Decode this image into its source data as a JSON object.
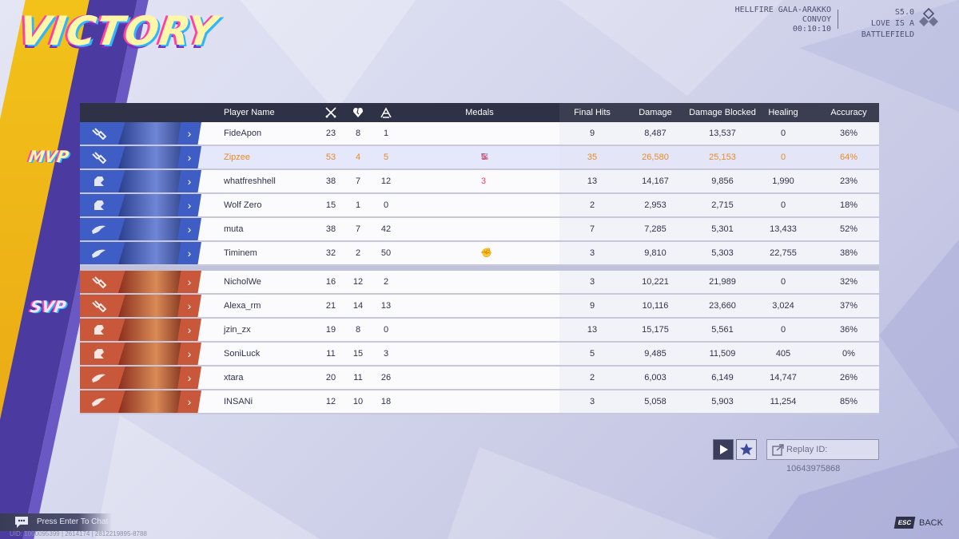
{
  "banner": {
    "title": "VICTORY"
  },
  "match": {
    "map": "HELLFIRE GALA-ARAKKO",
    "mode": "CONVOY",
    "duration": "00:10:10"
  },
  "season": {
    "number": "S5.0",
    "name": "LOVE IS A BATTLEFIELD"
  },
  "labels": {
    "mvp": "MVP",
    "svp": "SVP"
  },
  "table": {
    "headers": {
      "name": "Player Name",
      "medals": "Medals",
      "final_hits": "Final Hits",
      "damage": "Damage",
      "damage_blocked": "Damage Blocked",
      "healing": "Healing",
      "accuracy": "Accuracy"
    },
    "team_a": [
      {
        "name": "FideApon",
        "k": "23",
        "d": "8",
        "a": "1",
        "fh": "9",
        "dmg": "8,487",
        "blk": "13,537",
        "heal": "0",
        "acc": "36%",
        "role": "vanguard",
        "side": "blue"
      },
      {
        "name": "Zipzee",
        "k": "53",
        "d": "4",
        "a": "5",
        "fh": "35",
        "dmg": "26,580",
        "blk": "25,153",
        "heal": "0",
        "acc": "64%",
        "role": "vanguard",
        "side": "blue",
        "mvp": true
      },
      {
        "name": "whatfreshhell",
        "k": "38",
        "d": "7",
        "a": "12",
        "fh": "13",
        "dmg": "14,167",
        "blk": "9,856",
        "heal": "1,990",
        "acc": "23%",
        "role": "duelist",
        "side": "blue"
      },
      {
        "name": "Wolf Zero",
        "k": "15",
        "d": "1",
        "a": "0",
        "fh": "2",
        "dmg": "2,953",
        "blk": "2,715",
        "heal": "0",
        "acc": "18%",
        "role": "duelist",
        "side": "blue"
      },
      {
        "name": "muta",
        "k": "38",
        "d": "7",
        "a": "42",
        "fh": "7",
        "dmg": "7,285",
        "blk": "5,301",
        "heal": "13,433",
        "acc": "52%",
        "role": "strategist",
        "side": "blue"
      },
      {
        "name": "Timinem",
        "k": "32",
        "d": "2",
        "a": "50",
        "fh": "3",
        "dmg": "9,810",
        "blk": "5,303",
        "heal": "22,755",
        "acc": "38%",
        "role": "strategist",
        "side": "blue"
      }
    ],
    "team_b": [
      {
        "name": "NicholWe",
        "k": "16",
        "d": "12",
        "a": "2",
        "fh": "3",
        "dmg": "10,221",
        "blk": "21,989",
        "heal": "0",
        "acc": "32%",
        "role": "vanguard",
        "side": "red"
      },
      {
        "name": "Alexa_rm",
        "k": "21",
        "d": "14",
        "a": "13",
        "fh": "9",
        "dmg": "10,116",
        "blk": "23,660",
        "heal": "3,024",
        "acc": "37%",
        "role": "vanguard",
        "side": "red"
      },
      {
        "name": "jzin_zx",
        "k": "19",
        "d": "8",
        "a": "0",
        "fh": "13",
        "dmg": "15,175",
        "blk": "5,561",
        "heal": "0",
        "acc": "36%",
        "role": "duelist",
        "side": "red"
      },
      {
        "name": "SoniLuck",
        "k": "11",
        "d": "15",
        "a": "3",
        "fh": "5",
        "dmg": "9,485",
        "blk": "11,509",
        "heal": "405",
        "acc": "0%",
        "role": "duelist",
        "side": "red"
      },
      {
        "name": "xtara",
        "k": "20",
        "d": "11",
        "a": "26",
        "fh": "2",
        "dmg": "6,003",
        "blk": "6,149",
        "heal": "14,747",
        "acc": "26%",
        "role": "strategist",
        "side": "red"
      },
      {
        "name": "INSANi",
        "k": "12",
        "d": "10",
        "a": "18",
        "fh": "3",
        "dmg": "5,058",
        "blk": "5,903",
        "heal": "11,254",
        "acc": "85%",
        "role": "strategist",
        "side": "red"
      }
    ],
    "medals": {
      "Zipzee": [
        "swords-medal-icon",
        "fire-medal-icon",
        "shield-medal-icon",
        "five-streak-medal-icon"
      ],
      "whatfreshhell": [
        "three-streak-medal-icon"
      ],
      "Timinem": [
        "heal-cross-medal-icon",
        "fist-medal-icon"
      ]
    }
  },
  "controls": {
    "replay_id": "Replay ID: 10643975868"
  },
  "footer": {
    "chat_hint": "Press Enter To Chat",
    "uid": "UID: 1000095399 | 2614174 | 2812219895-8788",
    "esc_key": "ESC",
    "back_label": "BACK"
  },
  "colors": {
    "accent": "#e98a2a",
    "header": "#2f3146",
    "blue_team": "#3e5ec6",
    "red_team": "#c9583a"
  }
}
